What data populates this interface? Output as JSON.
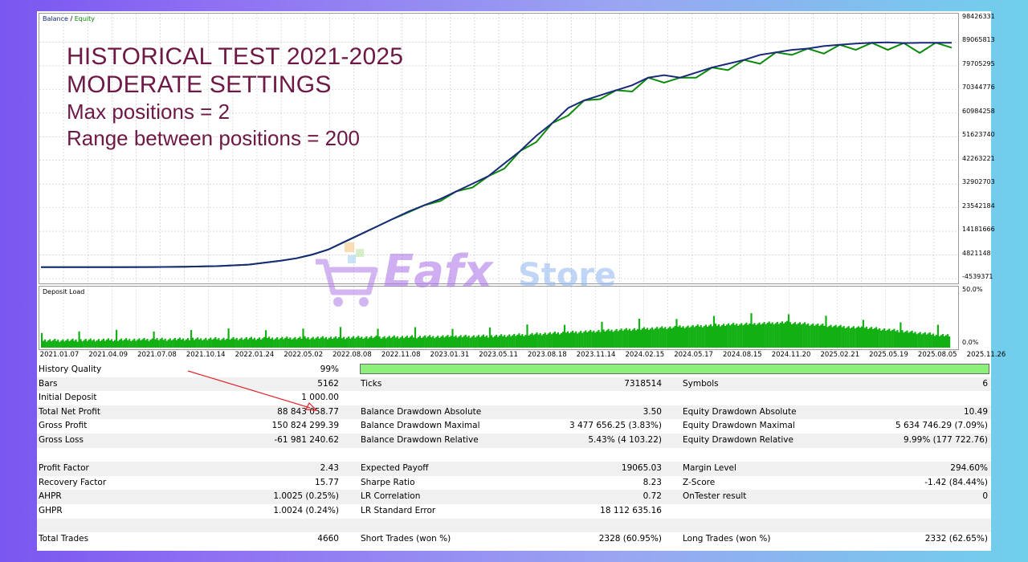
{
  "chart_data": [
    {
      "type": "line",
      "legend": [
        "Balance",
        "Equity"
      ],
      "series": [
        {
          "name": "Balance",
          "color": "#1a2a7a"
        },
        {
          "name": "Equity",
          "color": "#0b8a0b"
        }
      ],
      "y_tick_labels": [
        "98426331",
        "89065813",
        "79705295",
        "70344776",
        "60984258",
        "51623740",
        "42263221",
        "32902703",
        "23542184",
        "14181666",
        "4821148",
        "-4539371"
      ],
      "ylim": [
        -4539371,
        98426331
      ],
      "x_tick_labels": [
        "2021.01.07",
        "2021.04.09",
        "2021.07.08",
        "2021.10.14",
        "2022.01.24",
        "2022.05.02",
        "2022.08.08",
        "2022.11.08",
        "2023.01.31",
        "2023.05.11",
        "2023.08.18",
        "2023.11.14",
        "2024.02.15",
        "2024.05.17",
        "2024.08.15",
        "2024.11.20",
        "2025.02.21",
        "2025.05.19",
        "2025.08.05",
        "2025.11.26"
      ],
      "x_index": [
        0,
        3,
        5,
        7,
        9,
        11,
        13,
        15,
        16,
        17,
        18,
        19,
        20,
        21,
        22,
        23,
        24,
        25,
        26,
        27,
        28,
        29,
        30,
        31,
        32,
        33,
        34,
        35,
        36,
        37,
        38,
        39,
        40,
        41,
        42,
        43,
        44,
        45,
        46,
        47,
        48,
        49,
        50,
        51,
        52,
        53,
        54,
        55,
        56,
        57
      ],
      "balance": [
        1000,
        6000,
        15000,
        50000,
        150000,
        400000,
        1000000,
        2500000,
        3500000,
        5000000,
        7000000,
        10000000,
        13000000,
        16000000,
        19000000,
        22000000,
        24500000,
        27000000,
        30000000,
        33000000,
        36000000,
        41000000,
        46000000,
        52000000,
        57000000,
        63000000,
        66000000,
        68000000,
        70000000,
        72000000,
        75000000,
        76000000,
        75000000,
        77000000,
        79000000,
        80500000,
        82000000,
        84000000,
        85000000,
        86000000,
        86500000,
        87500000,
        88000000,
        88500000,
        88800000,
        89000000,
        88700000,
        88800000,
        88843000,
        88843058
      ],
      "equity_offsets": [
        0,
        0,
        0,
        0,
        0,
        0,
        0,
        0,
        0,
        0,
        0,
        0,
        0,
        0,
        0,
        -300000,
        0,
        -800000,
        0,
        -1500000,
        0,
        -2000000,
        0,
        -2500000,
        0,
        -3000000,
        0,
        -1500000,
        0,
        -2500000,
        0,
        -3000000,
        0,
        -2000000,
        0,
        -2500000,
        0,
        -3500000,
        0,
        -2000000,
        0,
        -3000000,
        0,
        -2500000,
        0,
        -3000000,
        0,
        -4000000,
        0,
        -2000000
      ]
    },
    {
      "type": "bar",
      "title": "Deposit Load",
      "y_tick_labels": [
        "50.0%",
        "0.0%"
      ],
      "ylim": [
        0,
        50
      ],
      "color": "#12b012"
    }
  ],
  "overlay": {
    "line1": "HISTORICAL TEST 2021-2025",
    "line2": "MODERATE SETTINGS",
    "line3": "Max positions = 2",
    "line4": "Range between positions = 200"
  },
  "panel_labels": {
    "balance": "Balance",
    "sep": " / ",
    "equity": "Equity",
    "deposit": "Deposit Load"
  },
  "watermark": {
    "brand1": "Eafx",
    "brand2": "Store"
  },
  "stats": {
    "history_quality_label": "History Quality",
    "history_quality_value": "99%",
    "rows": [
      {
        "c1l": "Bars",
        "c1v": "5162",
        "c2l": "Ticks",
        "c2v": "7318514",
        "c3l": "Symbols",
        "c3v": "6"
      },
      {
        "c1l": "Initial Deposit",
        "c1v": "1 000.00",
        "c2l": "",
        "c2v": "",
        "c3l": "",
        "c3v": ""
      },
      {
        "c1l": "Total Net Profit",
        "c1v": "88 843 058.77",
        "c2l": "Balance Drawdown Absolute",
        "c2v": "3.50",
        "c3l": "Equity Drawdown Absolute",
        "c3v": "10.49"
      },
      {
        "c1l": "Gross Profit",
        "c1v": "150 824 299.39",
        "c2l": "Balance Drawdown Maximal",
        "c2v": "3 477 656.25 (3.83%)",
        "c3l": "Equity Drawdown Maximal",
        "c3v": "5 634 746.29 (7.09%)"
      },
      {
        "c1l": "Gross Loss",
        "c1v": "-61 981 240.62",
        "c2l": "Balance Drawdown Relative",
        "c2v": "5.43% (4 103.22)",
        "c3l": "Equity Drawdown Relative",
        "c3v": "9.99% (177 722.76)"
      },
      {
        "c1l": "",
        "c1v": "",
        "c2l": "",
        "c2v": "",
        "c3l": "",
        "c3v": ""
      },
      {
        "c1l": "Profit Factor",
        "c1v": "2.43",
        "c2l": "Expected Payoff",
        "c2v": "19065.03",
        "c3l": "Margin Level",
        "c3v": "294.60%"
      },
      {
        "c1l": "Recovery Factor",
        "c1v": "15.77",
        "c2l": "Sharpe Ratio",
        "c2v": "8.23",
        "c3l": "Z-Score",
        "c3v": "-1.42 (84.44%)"
      },
      {
        "c1l": "AHPR",
        "c1v": "1.0025 (0.25%)",
        "c2l": "LR Correlation",
        "c2v": "0.72",
        "c3l": "OnTester result",
        "c3v": "0"
      },
      {
        "c1l": "GHPR",
        "c1v": "1.0024 (0.24%)",
        "c2l": "LR Standard Error",
        "c2v": "18 112 635.16",
        "c3l": "",
        "c3v": ""
      },
      {
        "c1l": "",
        "c1v": "",
        "c2l": "",
        "c2v": "",
        "c3l": "",
        "c3v": ""
      },
      {
        "c1l": "Total Trades",
        "c1v": "4660",
        "c2l": "Short Trades (won %)",
        "c2v": "2328 (60.95%)",
        "c3l": "Long Trades (won %)",
        "c3v": "2332 (62.65%)"
      }
    ]
  }
}
